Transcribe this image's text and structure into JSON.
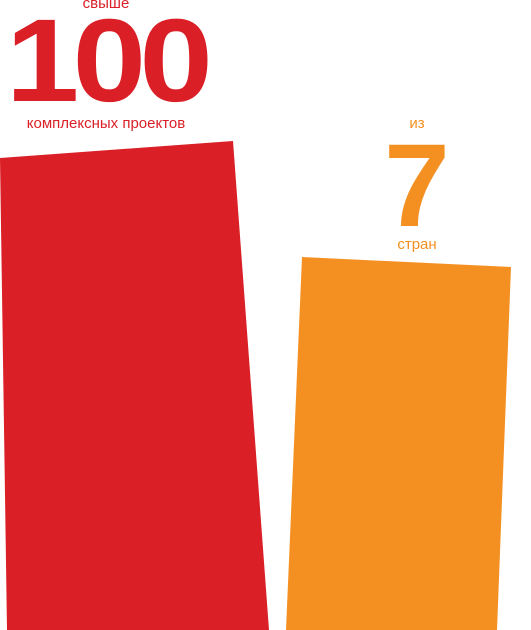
{
  "stats": [
    {
      "prefix": "свыше",
      "number": "100",
      "caption": "комплексных проектов",
      "color": "#da1f27"
    },
    {
      "prefix": "из",
      "number": "7",
      "caption": "стран",
      "color": "#f49022"
    }
  ]
}
